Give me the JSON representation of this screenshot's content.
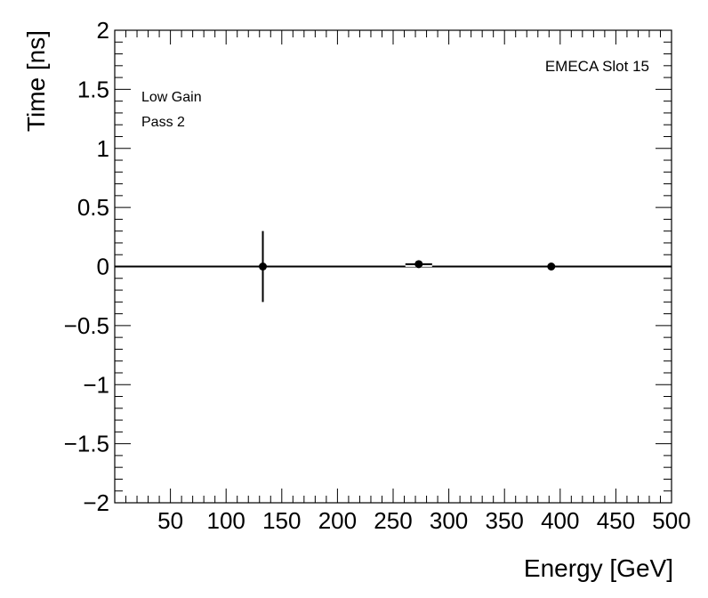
{
  "chart_data": {
    "type": "scatter",
    "xlabel": "Energy [GeV]",
    "ylabel": "Time [ns]",
    "xlim": [
      0,
      500
    ],
    "ylim": [
      -2,
      2
    ],
    "x_ticks": [
      50,
      100,
      150,
      200,
      250,
      300,
      350,
      400,
      450,
      500
    ],
    "y_ticks": [
      -2,
      -1.5,
      -1,
      -0.5,
      0,
      0.5,
      1,
      1.5,
      2
    ],
    "x_tick_labels": [
      "50",
      "100",
      "150",
      "200",
      "250",
      "300",
      "350",
      "400",
      "450",
      "500"
    ],
    "y_tick_labels": [
      "−2",
      "−1.5",
      "−1",
      "−0.5",
      "0",
      "0.5",
      "1",
      "1.5",
      "2"
    ],
    "reference_line_y": 0,
    "annotations": [
      "Low Gain",
      "Pass 2"
    ],
    "label_top_right": "EMECA Slot 15",
    "points": [
      {
        "x": 133,
        "y": 0.0,
        "y_err": 0.3
      },
      {
        "x": 273,
        "y": 0.02,
        "x_err": 12,
        "y_err": 0.01
      },
      {
        "x": 392,
        "y": 0.0,
        "y_err": 0.005
      }
    ],
    "grid": false,
    "marker_color": "#000000",
    "line_color": "#000000"
  }
}
